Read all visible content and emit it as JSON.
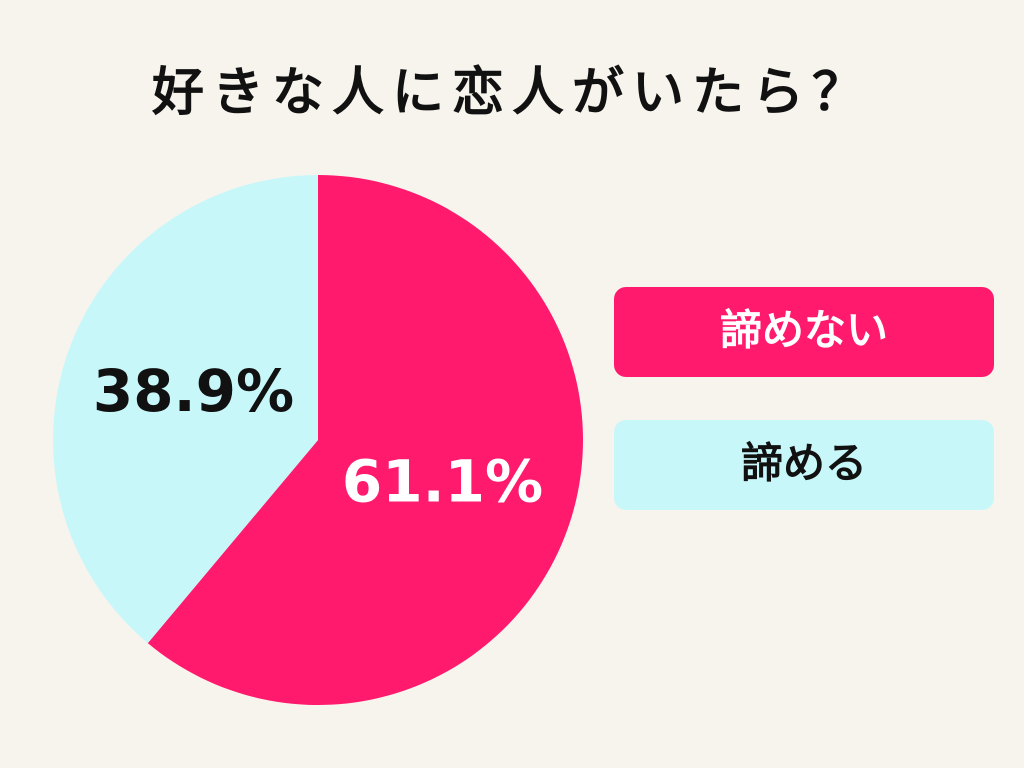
{
  "chart_data": {
    "type": "pie",
    "title": "好きな人に恋人がいたら？",
    "categories": [
      "諦めない",
      "諦める"
    ],
    "values": [
      61.1,
      38.9
    ],
    "value_labels": [
      "61.1%",
      "38.9%"
    ],
    "colors": [
      "#ff1a6e",
      "#c8f7fa"
    ]
  }
}
